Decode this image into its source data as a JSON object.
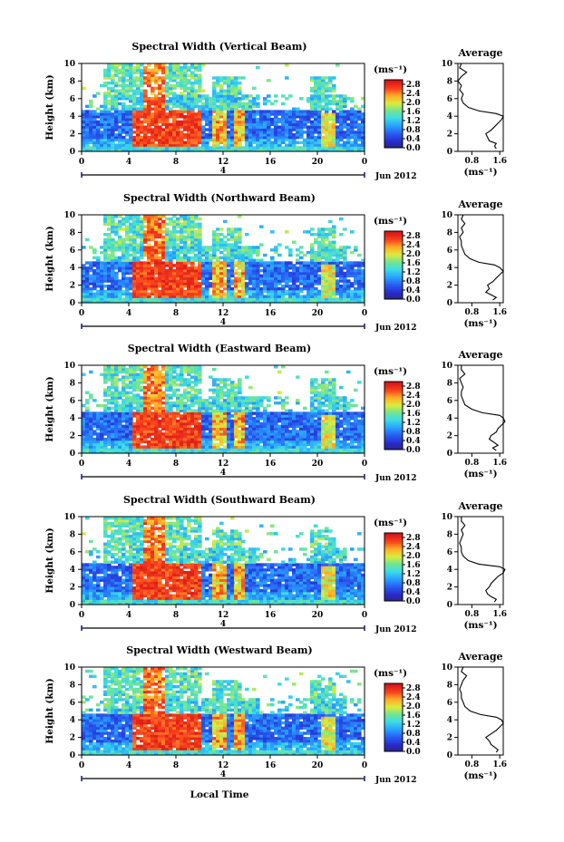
{
  "chart_data": [
    {
      "type": "heatmap",
      "title": "Spectral Width (Vertical Beam)",
      "avg_title": "Average",
      "ylabel": "Height (km)",
      "xlabel": "",
      "date_label": "Jun 2012",
      "day_label": "4",
      "colorbar_unit": "(ms⁻¹)",
      "avg_xlabel": "(ms⁻¹)",
      "xticks": [
        "0",
        "4",
        "8",
        "12",
        "16",
        "20",
        "0"
      ],
      "yticks": [
        "0",
        "2",
        "4",
        "6",
        "8",
        "10"
      ],
      "colorbar_ticks": [
        "0.0",
        "0.4",
        "0.8",
        "1.2",
        "1.6",
        "2.0",
        "2.4",
        "2.8"
      ],
      "avg_xticks": [
        "0.8",
        "1.6"
      ],
      "xlim": [
        0,
        24
      ],
      "ylim": [
        0,
        10
      ],
      "clim": [
        0,
        3.0
      ],
      "avg_profile": {
        "height_km": [
          0.3,
          0.6,
          0.9,
          1.2,
          1.6,
          2.0,
          2.4,
          2.8,
          3.2,
          3.6,
          4.0,
          4.3,
          4.6,
          5.0,
          5.5,
          6.0,
          6.5,
          7.0,
          7.5,
          8.0,
          8.5,
          9.0,
          9.5,
          10.0
        ],
        "width_ms": [
          1.5,
          1.45,
          1.5,
          1.3,
          1.25,
          1.2,
          1.35,
          1.45,
          1.55,
          1.65,
          1.7,
          1.5,
          1.0,
          0.7,
          0.55,
          0.5,
          0.55,
          0.45,
          0.5,
          0.4,
          0.5,
          0.65,
          0.45,
          0.5
        ]
      }
    },
    {
      "type": "heatmap",
      "title": "Spectral Width (Northward Beam)",
      "avg_title": "Average",
      "ylabel": "Height (km)",
      "xlabel": "",
      "date_label": "Jun 2012",
      "day_label": "4",
      "colorbar_unit": "(ms⁻¹)",
      "avg_xlabel": "(ms⁻¹)",
      "xticks": [
        "0",
        "4",
        "8",
        "12",
        "16",
        "20",
        "0"
      ],
      "yticks": [
        "0",
        "2",
        "4",
        "6",
        "8",
        "10"
      ],
      "colorbar_ticks": [
        "0.0",
        "0.4",
        "0.8",
        "1.2",
        "1.6",
        "2.0",
        "2.4",
        "2.8"
      ],
      "avg_xticks": [
        "0.8",
        "1.6"
      ],
      "xlim": [
        0,
        24
      ],
      "ylim": [
        0,
        10
      ],
      "clim": [
        0,
        3.0
      ],
      "avg_profile": {
        "height_km": [
          0.3,
          0.6,
          0.9,
          1.2,
          1.6,
          2.0,
          2.4,
          2.8,
          3.2,
          3.6,
          4.0,
          4.3,
          4.6,
          5.0,
          5.5,
          6.0,
          6.5,
          7.0,
          7.5,
          8.0,
          8.5,
          9.0,
          9.5,
          10.0
        ],
        "width_ms": [
          1.4,
          1.5,
          1.35,
          1.2,
          1.3,
          1.25,
          1.4,
          1.5,
          1.6,
          1.7,
          1.6,
          1.45,
          1.0,
          0.75,
          0.6,
          0.55,
          0.5,
          0.5,
          0.45,
          0.55,
          0.5,
          0.6,
          0.5,
          0.55
        ]
      }
    },
    {
      "type": "heatmap",
      "title": "Spectral Width (Eastward Beam)",
      "avg_title": "Average",
      "ylabel": "Height (km)",
      "xlabel": "",
      "date_label": "Jun 2012",
      "day_label": "4",
      "colorbar_unit": "(ms⁻¹)",
      "avg_xlabel": "(ms⁻¹)",
      "xticks": [
        "0",
        "4",
        "8",
        "12",
        "16",
        "20",
        "0"
      ],
      "yticks": [
        "0",
        "2",
        "4",
        "6",
        "8",
        "10"
      ],
      "colorbar_ticks": [
        "0.0",
        "0.4",
        "0.8",
        "1.2",
        "1.6",
        "2.0",
        "2.4",
        "2.8"
      ],
      "avg_xticks": [
        "0.8",
        "1.6"
      ],
      "xlim": [
        0,
        24
      ],
      "ylim": [
        0,
        10
      ],
      "clim": [
        0,
        3.0
      ],
      "avg_profile": {
        "height_km": [
          0.3,
          0.6,
          0.9,
          1.2,
          1.6,
          2.0,
          2.4,
          2.8,
          3.2,
          3.6,
          4.0,
          4.3,
          4.6,
          5.0,
          5.5,
          6.0,
          6.5,
          7.0,
          7.5,
          8.0,
          8.5,
          9.0,
          9.5,
          10.0
        ],
        "width_ms": [
          1.5,
          1.4,
          1.55,
          1.45,
          1.3,
          1.35,
          1.5,
          1.55,
          1.65,
          1.75,
          1.7,
          1.6,
          1.1,
          0.8,
          0.6,
          0.55,
          0.5,
          0.5,
          0.55,
          0.5,
          0.45,
          0.6,
          0.5,
          0.5
        ]
      }
    },
    {
      "type": "heatmap",
      "title": "Spectral Width (Southward Beam)",
      "avg_title": "Average",
      "ylabel": "Height (km)",
      "xlabel": "",
      "date_label": "Jun 2012",
      "day_label": "4",
      "colorbar_unit": "(ms⁻¹)",
      "avg_xlabel": "(ms⁻¹)",
      "xticks": [
        "0",
        "4",
        "8",
        "12",
        "16",
        "20",
        "0"
      ],
      "yticks": [
        "0",
        "2",
        "4",
        "6",
        "8",
        "10"
      ],
      "colorbar_ticks": [
        "0.0",
        "0.4",
        "0.8",
        "1.2",
        "1.6",
        "2.0",
        "2.4",
        "2.8"
      ],
      "avg_xticks": [
        "0.8",
        "1.6"
      ],
      "xlim": [
        0,
        24
      ],
      "ylim": [
        0,
        10
      ],
      "clim": [
        0,
        3.0
      ],
      "avg_profile": {
        "height_km": [
          0.3,
          0.6,
          0.9,
          1.2,
          1.6,
          2.0,
          2.4,
          2.8,
          3.2,
          3.6,
          4.0,
          4.3,
          4.6,
          5.0,
          5.5,
          6.0,
          6.5,
          7.0,
          7.5,
          8.0,
          8.5,
          9.0,
          9.5,
          10.0
        ],
        "width_ms": [
          1.45,
          1.5,
          1.35,
          1.25,
          1.2,
          1.3,
          1.35,
          1.45,
          1.55,
          1.7,
          1.75,
          1.6,
          1.0,
          0.7,
          0.55,
          0.5,
          0.5,
          0.45,
          0.5,
          0.55,
          0.5,
          0.6,
          0.5,
          0.5
        ]
      }
    },
    {
      "type": "heatmap",
      "title": "Spectral Width (Westward Beam)",
      "avg_title": "Average",
      "ylabel": "Height (km)",
      "xlabel": "Local Time",
      "date_label": "Jun 2012",
      "day_label": "4",
      "colorbar_unit": "(ms⁻¹)",
      "avg_xlabel": "(ms⁻¹)",
      "xticks": [
        "0",
        "4",
        "8",
        "12",
        "16",
        "20",
        "0"
      ],
      "yticks": [
        "0",
        "2",
        "4",
        "6",
        "8",
        "10"
      ],
      "colorbar_ticks": [
        "0.0",
        "0.4",
        "0.8",
        "1.2",
        "1.6",
        "2.0",
        "2.4",
        "2.8"
      ],
      "avg_xticks": [
        "0.8",
        "1.6"
      ],
      "xlim": [
        0,
        24
      ],
      "ylim": [
        0,
        10
      ],
      "clim": [
        0,
        3.0
      ],
      "avg_profile": {
        "height_km": [
          0.3,
          0.6,
          0.9,
          1.2,
          1.6,
          2.0,
          2.4,
          2.8,
          3.2,
          3.6,
          4.0,
          4.3,
          4.6,
          5.0,
          5.5,
          6.0,
          6.5,
          7.0,
          7.5,
          8.0,
          8.5,
          9.0,
          9.5,
          10.0
        ],
        "width_ms": [
          1.5,
          1.55,
          1.45,
          1.35,
          1.3,
          1.2,
          1.35,
          1.5,
          1.6,
          1.7,
          1.65,
          1.5,
          1.05,
          0.75,
          0.6,
          0.55,
          0.5,
          0.5,
          0.45,
          0.5,
          0.55,
          0.65,
          0.5,
          0.55
        ]
      }
    }
  ]
}
